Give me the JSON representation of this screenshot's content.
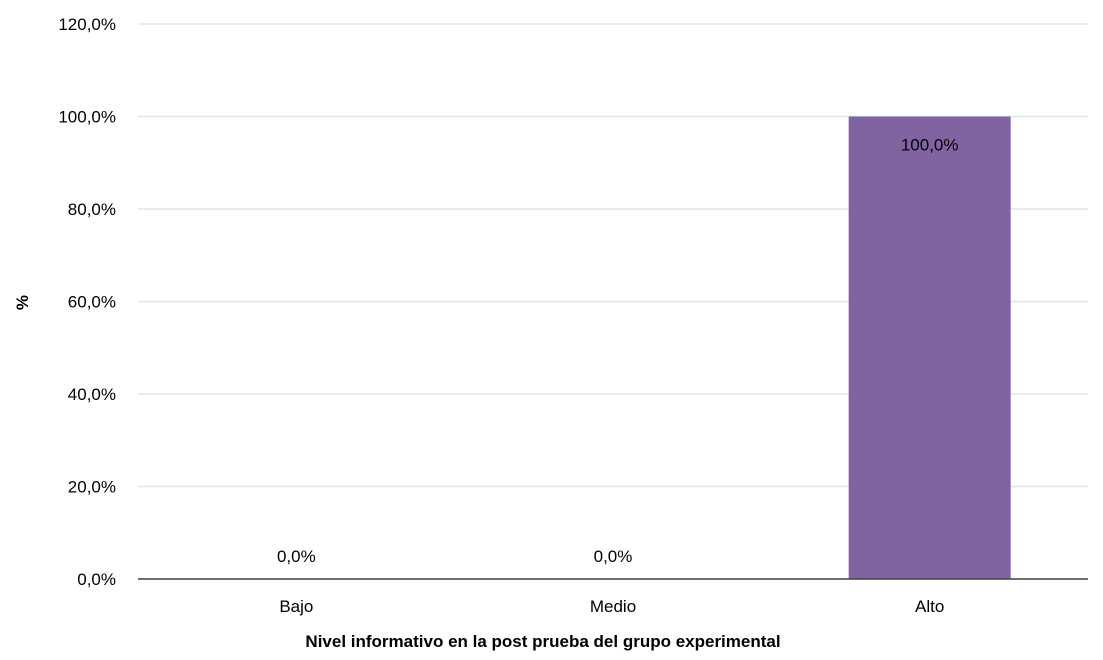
{
  "chart_data": {
    "type": "bar",
    "categories": [
      "Bajo",
      "Medio",
      "Alto"
    ],
    "values": [
      0.0,
      0.0,
      100.0
    ],
    "value_labels": [
      "0,0%",
      "0,0%",
      "100,0%"
    ],
    "xlabel": "Nivel informativo en la post prueba del grupo experimental",
    "ylabel": "%",
    "ylim": [
      0,
      120
    ],
    "yticks": [
      0,
      20,
      40,
      60,
      80,
      100,
      120
    ],
    "ytick_labels": [
      "0,0%",
      "20,0%",
      "40,0%",
      "60,0%",
      "80,0%",
      "100,0%",
      "120,0%"
    ],
    "grid": true,
    "colors": {
      "bar": "#8064a2",
      "grid": "#dce6f2",
      "axis": "#404040"
    }
  }
}
